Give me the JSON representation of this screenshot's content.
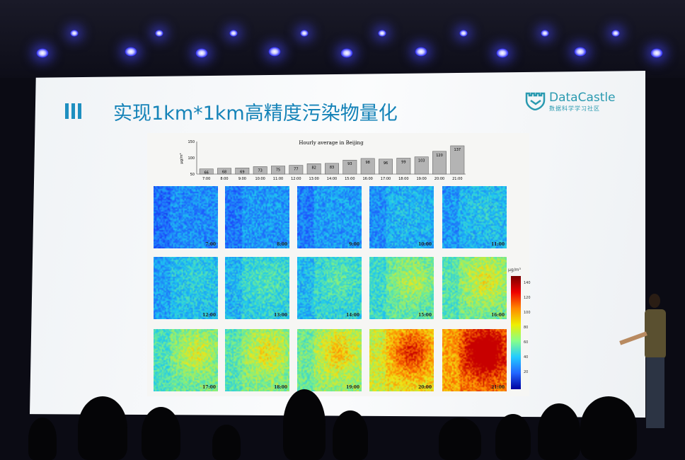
{
  "slide": {
    "title": "实现1km*1km高精度污染物量化",
    "logo": {
      "name": "DataCastle",
      "subtitle": "数据科学学习社区"
    },
    "accent_color": "#1583b8"
  },
  "chart_data": {
    "type": "bar",
    "title": "Hourly average in Beijing",
    "ylabel": "μg/m³",
    "ylim": [
      50,
      150
    ],
    "yticks": [
      50,
      100,
      150
    ],
    "categories": [
      "7:00",
      "8:00",
      "9:00",
      "10:00",
      "11:00",
      "12:00",
      "13:00",
      "14:00",
      "15:00",
      "16:00",
      "17:00",
      "18:00",
      "19:00",
      "20:00",
      "21:00"
    ],
    "values": [
      66,
      68,
      69,
      73,
      75,
      77,
      82,
      83,
      93,
      98,
      96,
      99,
      103,
      120,
      137
    ],
    "bar_color": "#b4b4b4"
  },
  "maps": {
    "panels": [
      "7:00",
      "8:00",
      "9:00",
      "10:00",
      "11:00",
      "12:00",
      "13:00",
      "14:00",
      "15:00",
      "16:00",
      "17:00",
      "18:00",
      "19:00",
      "20:00",
      "21:00"
    ],
    "colorbar": {
      "unit": "μg/m³",
      "ticks": [
        "140",
        "120",
        "100",
        "80",
        "60",
        "40",
        "20"
      ],
      "range": [
        0,
        150
      ]
    }
  }
}
